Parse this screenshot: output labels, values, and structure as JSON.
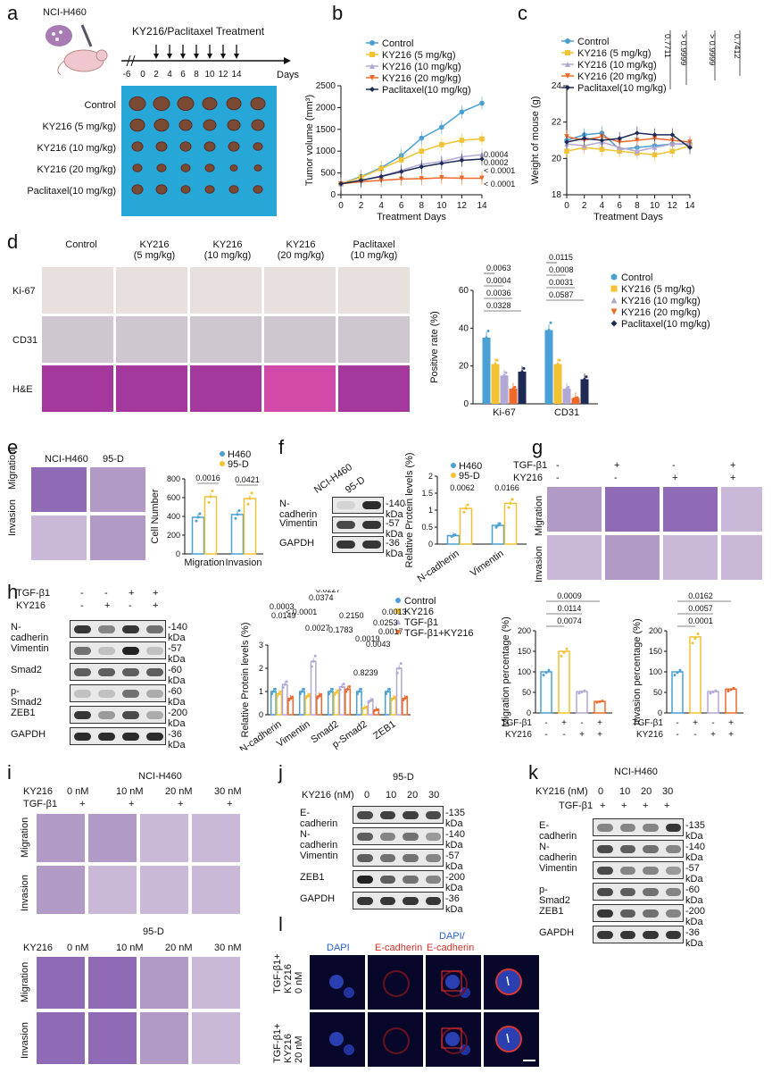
{
  "panels": {
    "a": {
      "label": "a",
      "cell_line": "NCI-H460",
      "treatment": "KY216/Paclitaxel Treatment",
      "timeline_ticks": [
        "-6",
        "0",
        "2",
        "4",
        "6",
        "8",
        "10",
        "12",
        "14"
      ],
      "timeline_unit": "Days",
      "groups": [
        "Control",
        "KY216 (5 mg/kg)",
        "KY216 (10 mg/kg)",
        "KY216 (20 mg/kg)",
        "Paclitaxel(10 mg/kg)"
      ]
    },
    "b": {
      "label": "b"
    },
    "c": {
      "label": "c"
    },
    "d": {
      "label": "d",
      "columns": [
        "Control",
        "KY216\n(5 mg/kg)",
        "KY216\n(10 mg/kg)",
        "KY216\n(20 mg/kg)",
        "Paclitaxel\n(10 mg/kg)"
      ],
      "rows": [
        "Ki-67",
        "CD31",
        "H&E"
      ]
    },
    "e": {
      "label": "e",
      "cols": [
        "NCI-H460",
        "95-D"
      ],
      "rows": [
        "Migration",
        "Invasion"
      ]
    },
    "f": {
      "label": "f",
      "lanes": [
        "NCI-H460",
        "95-D"
      ],
      "rows": [
        {
          "name": "N-cadherin",
          "kda": "140 kDa"
        },
        {
          "name": "Vimentin",
          "kda": "57 kDa"
        },
        {
          "name": "GAPDH",
          "kda": "36 kDa"
        }
      ]
    },
    "g": {
      "label": "g",
      "cond_rows": [
        {
          "name": "TGF-β1",
          "vals": [
            "-",
            "+",
            "-",
            "+"
          ]
        },
        {
          "name": "KY216",
          "vals": [
            "-",
            "-",
            "+",
            "+"
          ]
        }
      ],
      "rows": [
        "Migration",
        "Invasion"
      ]
    },
    "h": {
      "label": "h",
      "cond_rows": [
        {
          "name": "TGF-β1",
          "vals": [
            "-",
            "-",
            "+",
            "+"
          ]
        },
        {
          "name": "KY216",
          "vals": [
            "-",
            "+",
            "-",
            "+"
          ]
        }
      ],
      "rows": [
        {
          "name": "N-cadherin",
          "kda": "140 kDa"
        },
        {
          "name": "Vimentin",
          "kda": "57 kDa"
        },
        {
          "name": "Smad2",
          "kda": "60 kDa"
        },
        {
          "name": "p-Smad2",
          "kda": "60 kDa"
        },
        {
          "name": "ZEB1",
          "kda": "200 kDa"
        },
        {
          "name": "GAPDH",
          "kda": "36 kDa"
        }
      ]
    },
    "i": {
      "label": "i",
      "title1": "NCI-H460",
      "title2": "95-D",
      "drug": "KY216",
      "tgf": "TGF-β1",
      "doses": [
        "0 nM",
        "10 nM",
        "20 nM",
        "30 nM"
      ],
      "plus": "+",
      "rows": [
        "Migration",
        "Invasion"
      ]
    },
    "j": {
      "label": "j",
      "title": "95-D",
      "dose_label": "KY216 (nM)",
      "doses": [
        "0",
        "10",
        "20",
        "30"
      ],
      "rows": [
        {
          "name": "E-cadherin",
          "kda": "135 kDa"
        },
        {
          "name": "N-cadherin",
          "kda": "140 kDa"
        },
        {
          "name": "Vimentin",
          "kda": "57 kDa"
        },
        {
          "name": "ZEB1",
          "kda": "200 kDa"
        },
        {
          "name": "GAPDH",
          "kda": "36 kDa"
        }
      ]
    },
    "k": {
      "label": "k",
      "title": "NCI-H460",
      "dose_label": "KY216 (nM)",
      "doses": [
        "0",
        "10",
        "20",
        "30"
      ],
      "tgf": "TGF-β1",
      "plus": "+",
      "rows": [
        {
          "name": "E-cadherin",
          "kda": "135 kDa"
        },
        {
          "name": "N-cadherin",
          "kda": "140 kDa"
        },
        {
          "name": "Vimentin",
          "kda": "57 kDa"
        },
        {
          "name": "p-Smad2",
          "kda": "60 kDa"
        },
        {
          "name": "ZEB1",
          "kda": "200 kDa"
        },
        {
          "name": "GAPDH",
          "kda": "36 kDa"
        }
      ]
    },
    "l": {
      "label": "l",
      "cols": [
        "DAPI",
        "E-cadherin",
        "DAPI/",
        "E-cadherin"
      ],
      "rows": [
        "TGF-β1+\nKY216\n0 nM",
        "TGF-β1+\nKY216\n20 nM"
      ]
    }
  },
  "colors": {
    "control": "#4a9fd4",
    "ky5": "#f2c232",
    "ky10": "#b3a7d6",
    "ky20": "#ef6a2a",
    "pac": "#1f2a55",
    "h460": "#4a9fd4",
    "d95": "#f2c232"
  },
  "chart_data": [
    {
      "id": "b",
      "type": "line",
      "xlabel": "Treatment Days",
      "ylabel": "Tumor volume (mm³)",
      "x": [
        0,
        2,
        4,
        6,
        8,
        10,
        12,
        14
      ],
      "ylim": [
        0,
        2500
      ],
      "yticks": [
        0,
        500,
        1000,
        1500,
        2000,
        2500
      ],
      "legend": [
        "Control",
        "KY216 (5 mg/kg)",
        "KY216 (10 mg/kg)",
        "KY216 (20 mg/kg)",
        "Paclitaxel(10 mg/kg)"
      ],
      "series": [
        {
          "name": "Control",
          "values": [
            250,
            420,
            620,
            900,
            1300,
            1550,
            1900,
            2100
          ]
        },
        {
          "name": "KY216 (5 mg/kg)",
          "values": [
            250,
            400,
            600,
            800,
            1000,
            1150,
            1250,
            1280
          ]
        },
        {
          "name": "KY216 (10 mg/kg)",
          "values": [
            250,
            330,
            430,
            560,
            700,
            760,
            870,
            920
          ]
        },
        {
          "name": "KY216 (20 mg/kg)",
          "values": [
            250,
            300,
            330,
            360,
            370,
            390,
            380,
            380
          ]
        },
        {
          "name": "Paclitaxel(10 mg/kg)",
          "values": [
            250,
            330,
            420,
            530,
            640,
            720,
            790,
            820
          ]
        }
      ],
      "annotations": [
        "0.0004",
        "0.0002",
        "< 0.0001",
        "< 0.0001"
      ]
    },
    {
      "id": "c",
      "type": "line",
      "xlabel": "Treatment Days",
      "ylabel": "Weight of mouse (g)",
      "x": [
        0,
        2,
        4,
        6,
        8,
        10,
        12,
        14
      ],
      "ylim": [
        18,
        24
      ],
      "yticks": [
        18,
        20,
        22,
        24
      ],
      "legend": [
        "Control",
        "KY216 (5 mg/kg)",
        "KY216 (10 mg/kg)",
        "KY216 (20 mg/kg)",
        "Paclitaxel(10 mg/kg)"
      ],
      "series": [
        {
          "name": "Control",
          "values": [
            21.0,
            21.3,
            21.4,
            20.5,
            20.6,
            20.7,
            20.8,
            20.8
          ]
        },
        {
          "name": "KY216 (5 mg/kg)",
          "values": [
            20.4,
            20.6,
            20.5,
            20.4,
            20.3,
            20.2,
            20.4,
            20.7
          ]
        },
        {
          "name": "KY216 (10 mg/kg)",
          "values": [
            20.8,
            20.7,
            20.9,
            20.6,
            20.4,
            20.6,
            20.8,
            20.8
          ]
        },
        {
          "name": "KY216 (20 mg/kg)",
          "values": [
            21.2,
            21.0,
            21.2,
            20.9,
            21.0,
            21.1,
            21.0,
            20.9
          ]
        },
        {
          "name": "Paclitaxel(10 mg/kg)",
          "values": [
            20.9,
            21.1,
            21.0,
            21.1,
            21.4,
            21.3,
            21.3,
            20.6
          ]
        }
      ],
      "annotations": [
        "0.7711",
        "> 0.9999",
        "> 0.9999",
        "0.7412"
      ]
    },
    {
      "id": "d",
      "type": "bar",
      "ylabel": "Positive rate (%)",
      "ylim": [
        0,
        60
      ],
      "yticks": [
        0,
        20,
        40,
        60
      ],
      "categories": [
        "Ki-67",
        "CD31"
      ],
      "legend": [
        "Control",
        "KY216 (5 mg/kg)",
        "KY216 (10 mg/kg)",
        "KY216 (20 mg/kg)",
        "Paclitaxel(10 mg/kg)"
      ],
      "series": [
        {
          "name": "Control",
          "values": [
            35,
            39
          ]
        },
        {
          "name": "KY216 (5 mg/kg)",
          "values": [
            21,
            21
          ]
        },
        {
          "name": "KY216 (10 mg/kg)",
          "values": [
            15,
            8
          ]
        },
        {
          "name": "KY216 (20 mg/kg)",
          "values": [
            8,
            3
          ]
        },
        {
          "name": "Paclitaxel(10 mg/kg)",
          "values": [
            17,
            13
          ]
        }
      ],
      "annotations": [
        "0.0063",
        "0.0004",
        "0.0036",
        "0.0328",
        "0.0115",
        "0.0008",
        "0.0031",
        "0.0587"
      ]
    },
    {
      "id": "e",
      "type": "bar",
      "ylabel": "Cell Number",
      "ylim": [
        0,
        800
      ],
      "yticks": [
        0,
        200,
        400,
        600,
        800
      ],
      "categories": [
        "Migration",
        "Invasion"
      ],
      "legend": [
        "H460",
        "95-D"
      ],
      "series": [
        {
          "name": "H460",
          "values": [
            390,
            420
          ]
        },
        {
          "name": "95-D",
          "values": [
            610,
            590
          ]
        }
      ],
      "annotations": [
        "0.0016",
        "0.0421"
      ]
    },
    {
      "id": "f",
      "type": "bar",
      "ylabel": "Relative Protein levels (%)",
      "ylim": [
        0,
        2.0
      ],
      "yticks": [
        0.0,
        0.5,
        1.0,
        1.5,
        2.0
      ],
      "categories": [
        "N-cadherin",
        "Vimentin"
      ],
      "legend": [
        "H460",
        "95-D"
      ],
      "series": [
        {
          "name": "H460",
          "values": [
            0.25,
            0.55
          ]
        },
        {
          "name": "95-D",
          "values": [
            1.05,
            1.2
          ]
        }
      ],
      "annotations": [
        "0.0062",
        "0.0166"
      ]
    },
    {
      "id": "h",
      "type": "bar",
      "ylabel": "Relative Protein levels (%)",
      "ylim": [
        0,
        3
      ],
      "yticks": [
        0,
        1,
        2,
        3
      ],
      "categories": [
        "N-cadherin",
        "Vimentin",
        "Smad2",
        "p-Smad2",
        "ZEB1"
      ],
      "legend": [
        "Control",
        "KY216",
        "TGF-β1",
        "TGF-β1+KY216"
      ],
      "series": [
        {
          "name": "Control",
          "values": [
            1,
            1,
            1,
            1,
            1
          ]
        },
        {
          "name": "KY216",
          "values": [
            0.9,
            0.8,
            0.95,
            0.3,
            0.7
          ]
        },
        {
          "name": "TGF-β1",
          "values": [
            1.3,
            2.3,
            1.2,
            0.6,
            2.0
          ]
        },
        {
          "name": "TGF-β1+KY216",
          "values": [
            0.7,
            0.8,
            1.1,
            0.2,
            0.7
          ]
        }
      ],
      "annotations": [
        "0.0003",
        "0.0149",
        "< 0.0001",
        "0.0374",
        "0.0227",
        "0.0027",
        "0.1783",
        "0.2150",
        "0.8239",
        "0.0019",
        "0.0043",
        "0.0253",
        "0.0017",
        "0.0013"
      ]
    },
    {
      "id": "h-mig",
      "type": "bar",
      "ylabel": "Migration percentage (%)",
      "ylim": [
        0,
        200
      ],
      "yticks": [
        0,
        50,
        100,
        150,
        200
      ],
      "categories": [
        "1",
        "2",
        "3",
        "4"
      ],
      "values": [
        100,
        150,
        52,
        28
      ],
      "cond_rows": [
        {
          "name": "TGF-β1",
          "vals": [
            "-",
            "+",
            "-",
            "+"
          ]
        },
        {
          "name": "KY216",
          "vals": [
            "-",
            "-",
            "+",
            "+"
          ]
        }
      ],
      "annotations": [
        "0.0009",
        "0.0114",
        "0.0074"
      ]
    },
    {
      "id": "h-inv",
      "type": "bar",
      "ylabel": "Invasion percentage (%)",
      "ylim": [
        0,
        200
      ],
      "yticks": [
        0,
        50,
        100,
        150,
        200
      ],
      "categories": [
        "1",
        "2",
        "3",
        "4"
      ],
      "values": [
        100,
        185,
        52,
        58
      ],
      "cond_rows": [
        {
          "name": "TGF-β1",
          "vals": [
            "-",
            "+",
            "-",
            "+"
          ]
        },
        {
          "name": "KY216",
          "vals": [
            "-",
            "-",
            "+",
            "+"
          ]
        }
      ],
      "annotations": [
        "0.0162",
        "0.0057",
        "0.0001"
      ]
    }
  ]
}
